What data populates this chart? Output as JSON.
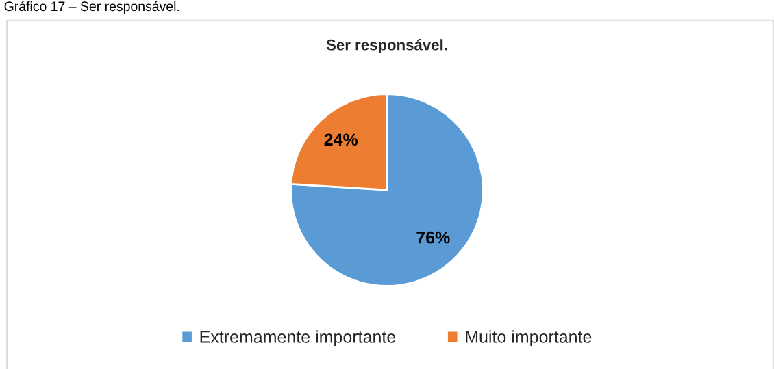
{
  "chart_data": {
    "type": "pie",
    "title": "Ser responsável.",
    "annotations": [
      "Gráfico 17 – Ser responsável."
    ],
    "categories": [
      "Extremamente importante",
      "Muito importante"
    ],
    "values": [
      76,
      24
    ],
    "colors": [
      "#5b9bd5",
      "#ed7d31"
    ],
    "value_labels": [
      "76%",
      "24%"
    ],
    "legend": "bottom"
  }
}
